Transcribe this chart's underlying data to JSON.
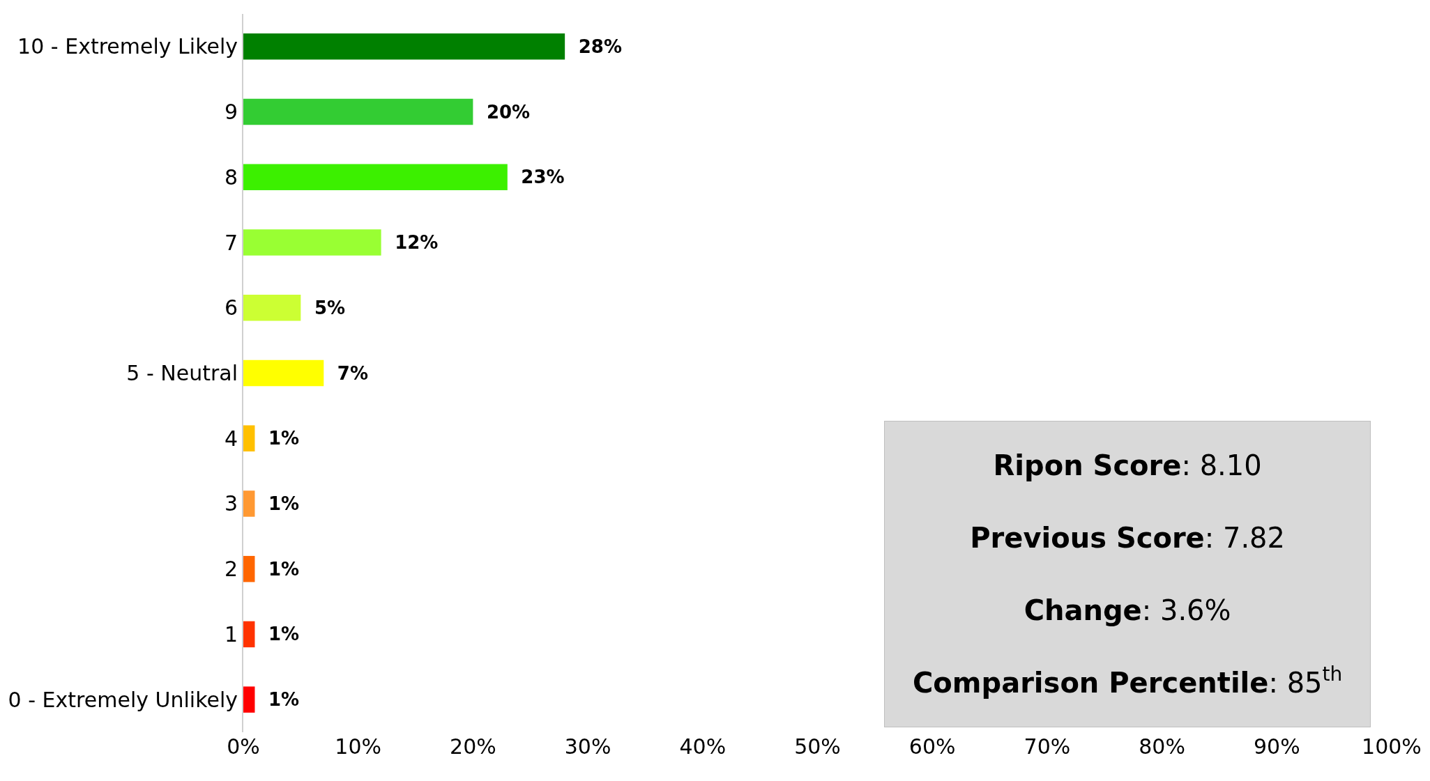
{
  "chart_data": {
    "type": "bar",
    "orientation": "horizontal",
    "categories": [
      "10 - Extremely Likely",
      "9",
      "8",
      "7",
      "6",
      "5 - Neutral",
      "4",
      "3",
      "2",
      "1",
      "0 - Extremely Unlikely"
    ],
    "values": [
      28,
      20,
      23,
      12,
      5,
      7,
      1,
      1,
      1,
      1,
      1
    ],
    "colors": [
      "#008000",
      "#33cc33",
      "#3cf000",
      "#99ff33",
      "#ccff33",
      "#ffff00",
      "#ffc000",
      "#ff9933",
      "#ff6600",
      "#ff3300",
      "#ff0000"
    ],
    "value_labels": [
      "28%",
      "20%",
      "23%",
      "12%",
      "5%",
      "7%",
      "1%",
      "1%",
      "1%",
      "1%",
      "1%"
    ],
    "xlim": [
      0,
      100
    ],
    "xticks": [
      {
        "value": 0,
        "label": "0%"
      },
      {
        "value": 10,
        "label": "10%"
      },
      {
        "value": 20,
        "label": "20%"
      },
      {
        "value": 30,
        "label": "30%"
      },
      {
        "value": 40,
        "label": "40%"
      },
      {
        "value": 50,
        "label": "50%"
      },
      {
        "value": 60,
        "label": "60%"
      },
      {
        "value": 70,
        "label": "70%"
      },
      {
        "value": 80,
        "label": "80%"
      },
      {
        "value": 90,
        "label": "90%"
      },
      {
        "value": 100,
        "label": "100%"
      }
    ],
    "legend": false,
    "annotations": [
      "Ripon Score: 8.10",
      "Previous Score: 7.82",
      "Change: 3.6%",
      "Comparison Percentile: 85$^{th}$"
    ]
  }
}
